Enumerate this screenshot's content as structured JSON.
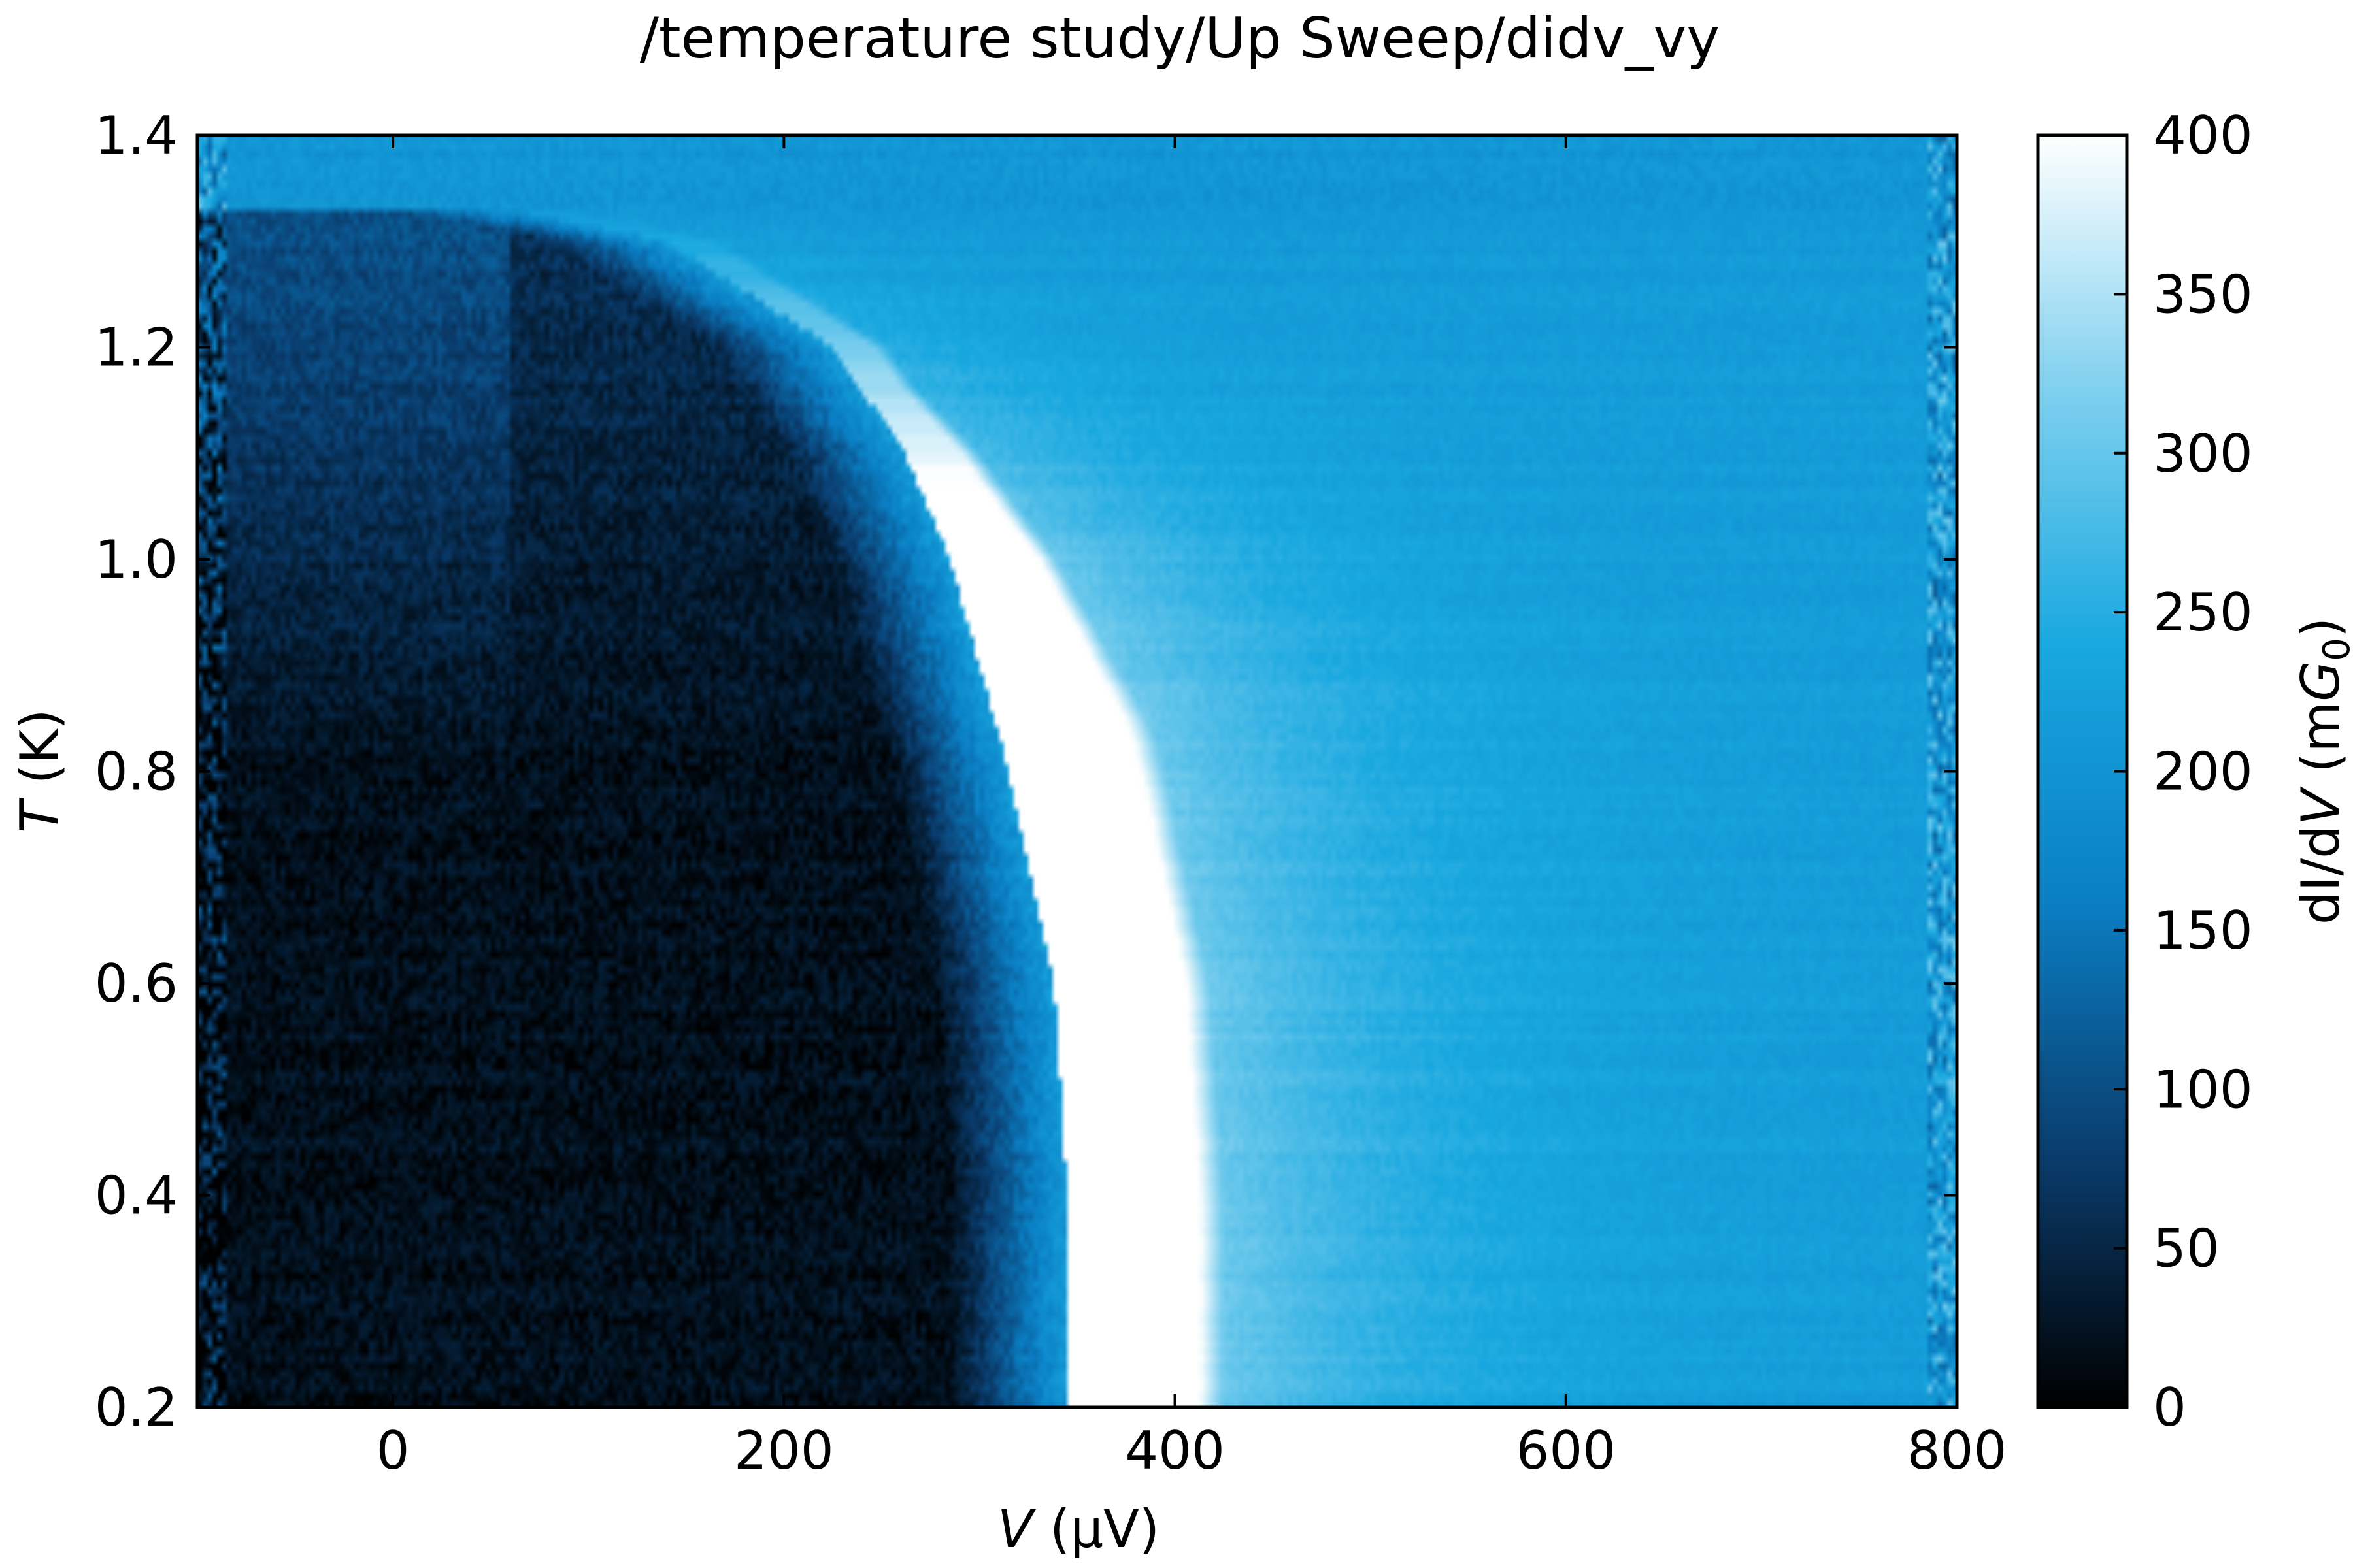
{
  "chart_data": {
    "type": "heatmap",
    "title": "/temperature study/Up Sweep/didv_vy",
    "xlabel": {
      "italic": "V",
      "rest": " (µV)"
    },
    "ylabel": {
      "italic": "T",
      "rest": " (K)"
    },
    "colorbar_label": {
      "pre": "dI/d",
      "italic": "V",
      "mid": " (m",
      "italic2": "G",
      "sub": "0",
      "post": ")"
    },
    "xlim": [
      -100,
      800
    ],
    "ylim": [
      0.2,
      1.4
    ],
    "clim": [
      0,
      400
    ],
    "xticks": [
      0,
      200,
      400,
      600,
      800
    ],
    "xtick_labels": [
      "0",
      "200",
      "400",
      "600",
      "800"
    ],
    "yticks": [
      0.2,
      0.4,
      0.6,
      0.8,
      1.0,
      1.2,
      1.4
    ],
    "ytick_labels": [
      "0.2",
      "0.4",
      "0.6",
      "0.8",
      "1.0",
      "1.2",
      "1.4"
    ],
    "cticks": [
      0,
      50,
      100,
      150,
      200,
      250,
      300,
      350,
      400
    ],
    "ctick_labels": [
      "0",
      "50",
      "100",
      "150",
      "200",
      "250",
      "300",
      "350",
      "400"
    ],
    "colormap": [
      "#000000",
      "#0a3d6e",
      "#0a7fc4",
      "#19a8e0",
      "#7fd0ef",
      "#ffffff"
    ],
    "features": {
      "gap_edge_V_at_T": [
        [
          0.2,
          345
        ],
        [
          0.4,
          345
        ],
        [
          0.6,
          338
        ],
        [
          0.8,
          315
        ],
        [
          1.0,
          285
        ],
        [
          1.1,
          262
        ],
        [
          1.2,
          225
        ],
        [
          1.3,
          140
        ],
        [
          1.33,
          60
        ]
      ],
      "peak_width_uV": 80,
      "peak_value_mG0": 400,
      "inside_gap_value_mG0": 20,
      "outside_gap_value_mG0": 215,
      "above_Tc_value_mG0": 205,
      "Tc_K": 1.34
    },
    "grid": false,
    "legend": "none"
  }
}
